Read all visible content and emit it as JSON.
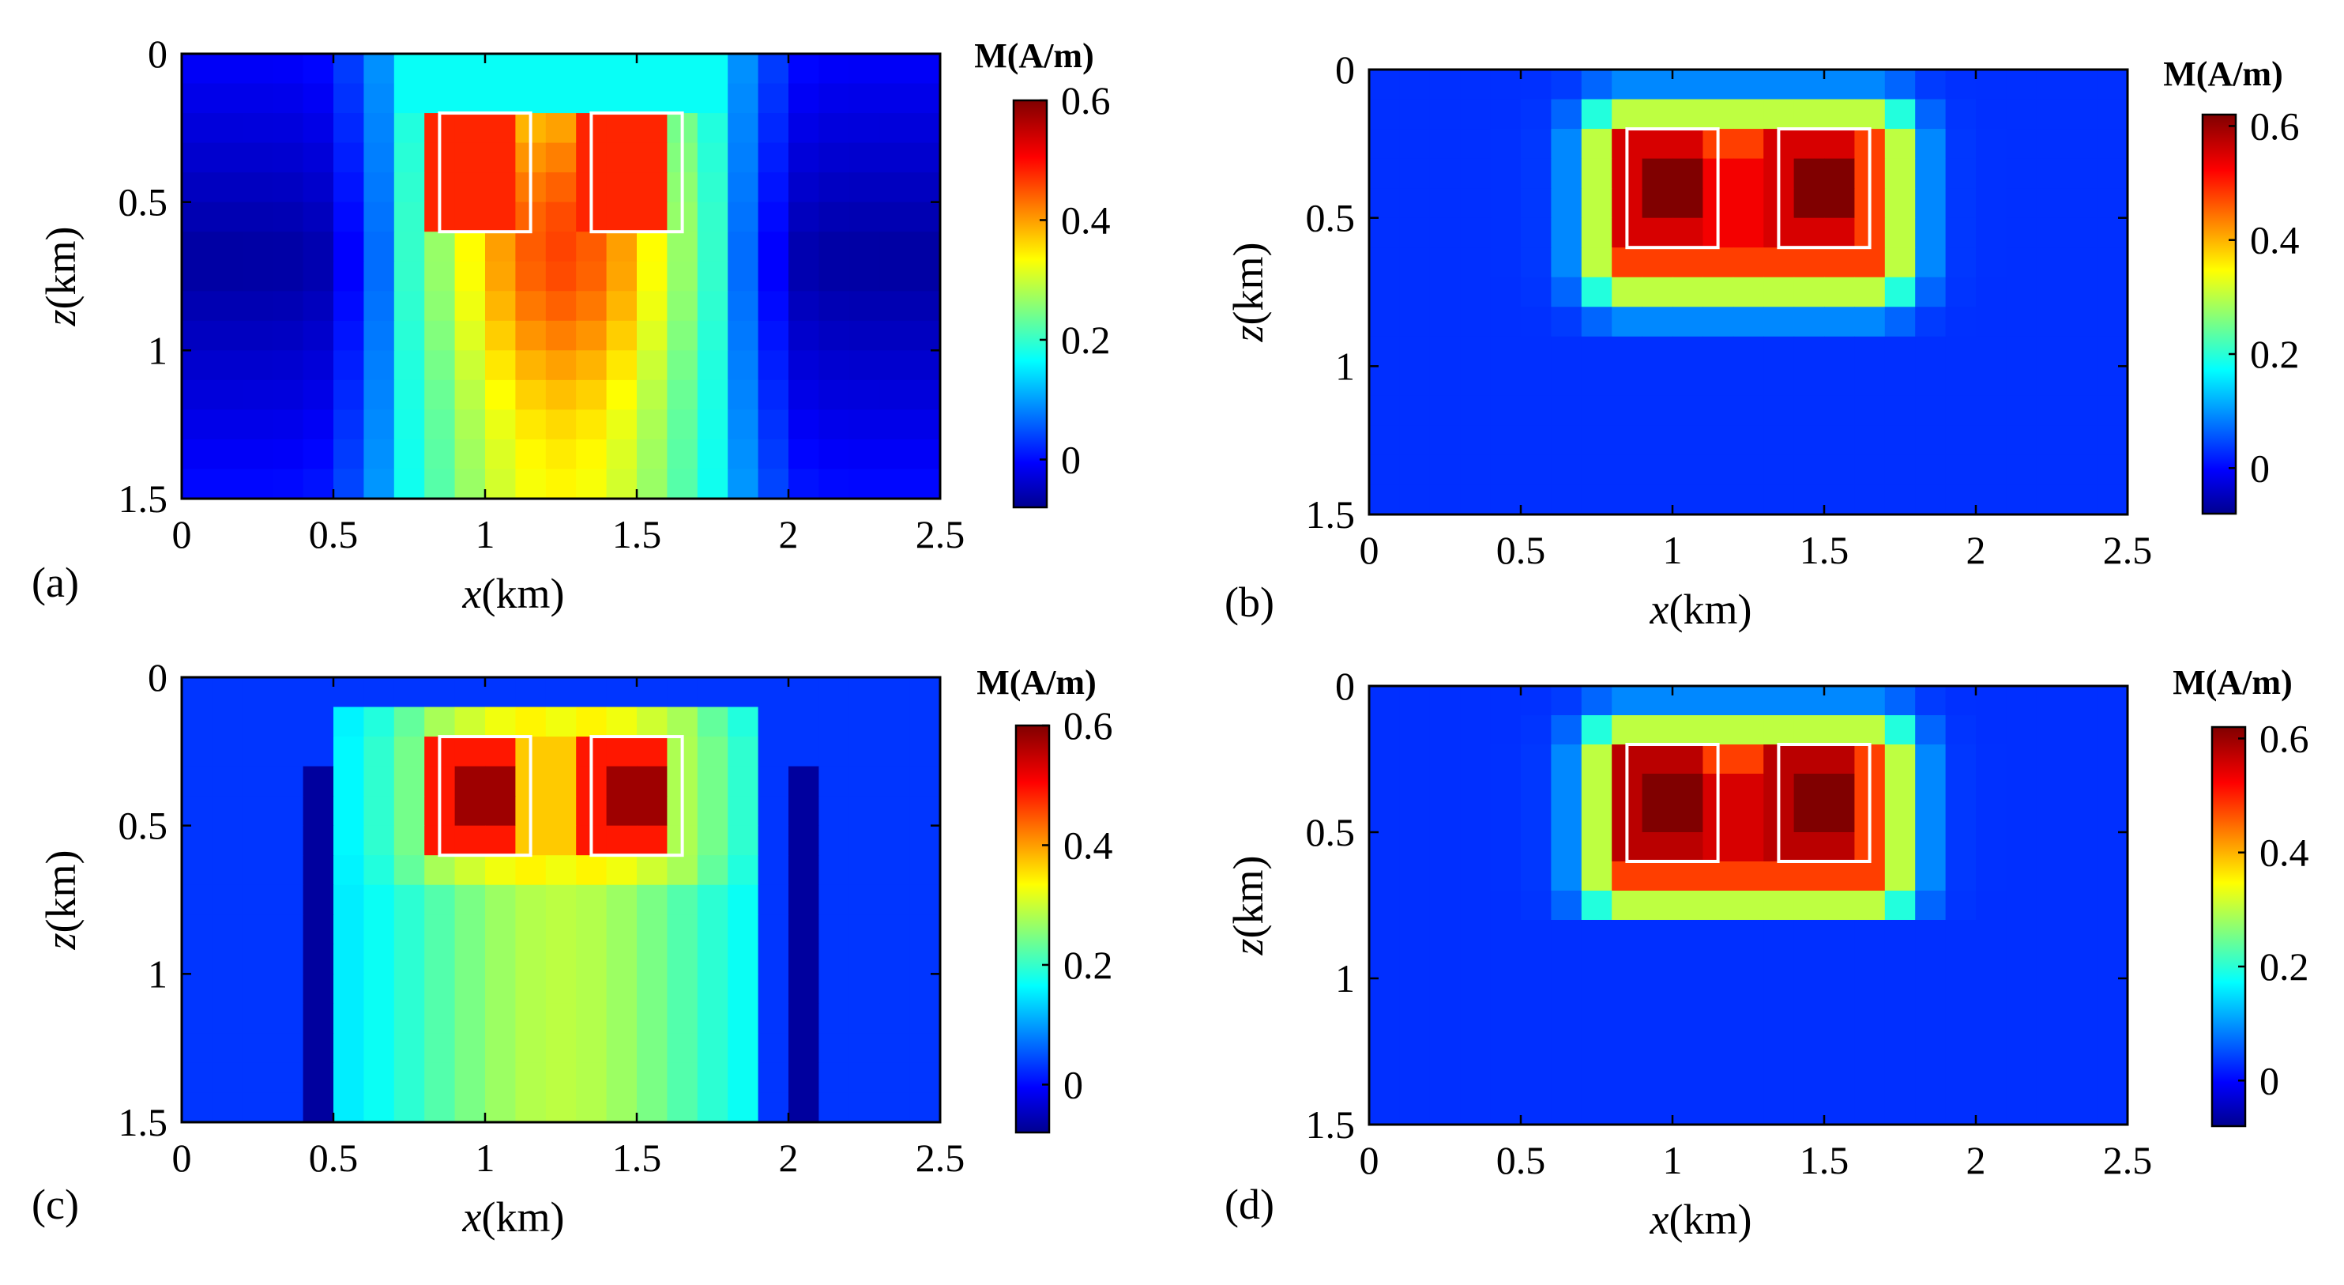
{
  "chart_data": [
    {
      "type": "heatmap",
      "panel_label": "(a)",
      "xlabel_var": "x",
      "xlabel_unit": "(km)",
      "ylabel_var": "z",
      "ylabel_unit": "(km)",
      "xlim": [
        0,
        2.5
      ],
      "ylim": [
        0,
        1.5
      ],
      "xticks": [
        "0",
        "0.5",
        "1",
        "1.5",
        "2",
        "2.5"
      ],
      "xtick_values": [
        0,
        0.5,
        1,
        1.5,
        2,
        2.5
      ],
      "yticks": [
        "0",
        "0.5",
        "1",
        "1.5"
      ],
      "ytick_values": [
        0,
        0.5,
        1,
        1.5
      ],
      "colorbar_title": "M(A/m)",
      "colorbar_range": [
        -0.08,
        0.6
      ],
      "colorbar_ticks": [
        "0",
        "0.2",
        "0.4",
        "0.6"
      ],
      "colorbar_tick_values": [
        0,
        0.2,
        0.4,
        0.6
      ],
      "grid": [
        25,
        15
      ],
      "true_bodies": [
        {
          "x": [
            0.85,
            1.15
          ],
          "z": [
            0.2,
            0.6
          ]
        },
        {
          "x": [
            1.35,
            1.65
          ],
          "z": [
            0.2,
            0.6
          ]
        }
      ],
      "model": {
        "kind": "smooth",
        "bg": 0.05,
        "xmin": 0.8,
        "xmax": 1.7,
        "ztop": 0.2,
        "core": 0.47,
        "floor": 0.34,
        "neg": -0.06
      }
    },
    {
      "type": "heatmap",
      "panel_label": "(b)",
      "xlabel_var": "x",
      "xlabel_unit": "(km)",
      "ylabel_var": "z",
      "ylabel_unit": "(km)",
      "xlim": [
        0,
        2.5
      ],
      "ylim": [
        0,
        1.5
      ],
      "xticks": [
        "0",
        "0.5",
        "1",
        "1.5",
        "2",
        "2.5"
      ],
      "xtick_values": [
        0,
        0.5,
        1,
        1.5,
        2,
        2.5
      ],
      "yticks": [
        "0",
        "0.5",
        "1",
        "1.5"
      ],
      "ytick_values": [
        0,
        0.5,
        1,
        1.5
      ],
      "colorbar_title": "M(A/m)",
      "colorbar_range": [
        -0.08,
        0.62
      ],
      "colorbar_ticks": [
        "0",
        "0.2",
        "0.4",
        "0.6"
      ],
      "colorbar_tick_values": [
        0,
        0.2,
        0.4,
        0.6
      ],
      "grid": [
        25,
        15
      ],
      "true_bodies": [
        {
          "x": [
            0.85,
            1.15
          ],
          "z": [
            0.2,
            0.6
          ]
        },
        {
          "x": [
            1.35,
            1.65
          ],
          "z": [
            0.2,
            0.6
          ]
        }
      ],
      "model": {
        "kind": "compact",
        "bg": 0.04,
        "peak": 0.62,
        "mid": 0.56,
        "zbottom": 0.95
      }
    },
    {
      "type": "heatmap",
      "panel_label": "(c)",
      "xlabel_var": "x",
      "xlabel_unit": "(km)",
      "ylabel_var": "z",
      "ylabel_unit": "(km)",
      "xlim": [
        0,
        2.5
      ],
      "ylim": [
        0,
        1.5
      ],
      "xticks": [
        "0",
        "0.5",
        "1",
        "1.5",
        "2",
        "2.5"
      ],
      "xtick_values": [
        0,
        0.5,
        1,
        1.5,
        2,
        2.5
      ],
      "yticks": [
        "0",
        "0.5",
        "1",
        "1.5"
      ],
      "ytick_values": [
        0,
        0.5,
        1,
        1.5
      ],
      "colorbar_title": "M(A/m)",
      "colorbar_range": [
        -0.08,
        0.6
      ],
      "colorbar_ticks": [
        "0",
        "0.2",
        "0.4",
        "0.6"
      ],
      "colorbar_tick_values": [
        0,
        0.2,
        0.4,
        0.6
      ],
      "grid": [
        25,
        15
      ],
      "true_bodies": [
        {
          "x": [
            0.85,
            1.15
          ],
          "z": [
            0.2,
            0.6
          ]
        },
        {
          "x": [
            1.35,
            1.65
          ],
          "z": [
            0.2,
            0.6
          ]
        }
      ],
      "model": {
        "kind": "sharp",
        "bg": 0.04,
        "peak": 0.58,
        "column": 0.2,
        "xmin": 0.55,
        "xmax": 1.95,
        "neg": -0.06
      }
    },
    {
      "type": "heatmap",
      "panel_label": "(d)",
      "xlabel_var": "x",
      "xlabel_unit": "(km)",
      "ylabel_var": "z",
      "ylabel_unit": "(km)",
      "xlim": [
        0,
        2.5
      ],
      "ylim": [
        0,
        1.5
      ],
      "xticks": [
        "0",
        "0.5",
        "1",
        "1.5",
        "2",
        "2.5"
      ],
      "xtick_values": [
        0,
        0.5,
        1,
        1.5,
        2,
        2.5
      ],
      "yticks": [
        "0",
        "0.5",
        "1",
        "1.5"
      ],
      "ytick_values": [
        0,
        0.5,
        1,
        1.5
      ],
      "colorbar_title": "M(A/m)",
      "colorbar_range": [
        -0.08,
        0.62
      ],
      "colorbar_ticks": [
        "0",
        "0.2",
        "0.4",
        "0.6"
      ],
      "colorbar_tick_values": [
        0,
        0.2,
        0.4,
        0.6
      ],
      "grid": [
        25,
        15
      ],
      "true_bodies": [
        {
          "x": [
            0.85,
            1.15
          ],
          "z": [
            0.2,
            0.6
          ]
        },
        {
          "x": [
            1.35,
            1.65
          ],
          "z": [
            0.2,
            0.6
          ]
        }
      ],
      "model": {
        "kind": "compact",
        "bg": 0.04,
        "peak": 0.62,
        "mid": 0.58,
        "zbottom": 0.85
      }
    }
  ]
}
